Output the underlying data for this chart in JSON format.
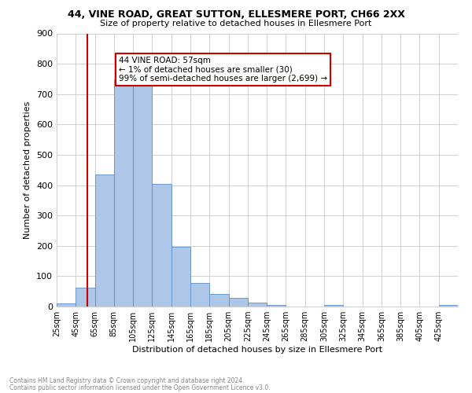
{
  "title1": "44, VINE ROAD, GREAT SUTTON, ELLESMERE PORT, CH66 2XX",
  "title2": "Size of property relative to detached houses in Ellesmere Port",
  "xlabel": "Distribution of detached houses by size in Ellesmere Port",
  "ylabel": "Number of detached properties",
  "bin_labels": [
    "25sqm",
    "45sqm",
    "65sqm",
    "85sqm",
    "105sqm",
    "125sqm",
    "145sqm",
    "165sqm",
    "185sqm",
    "205sqm",
    "225sqm",
    "245sqm",
    "265sqm",
    "285sqm",
    "305sqm",
    "325sqm",
    "345sqm",
    "365sqm",
    "385sqm",
    "405sqm",
    "425sqm"
  ],
  "bar_heights": [
    10,
    62,
    435,
    748,
    730,
    403,
    198,
    78,
    42,
    28,
    12,
    5,
    0,
    0,
    5,
    0,
    0,
    0,
    0,
    0,
    5
  ],
  "bar_color": "#aec6e8",
  "bar_edge_color": "#5b8fc9",
  "vline_x": 57,
  "vline_color": "#cc0000",
  "annotation_line1": "44 VINE ROAD: 57sqm",
  "annotation_line2": "← 1% of detached houses are smaller (30)",
  "annotation_line3": "99% of semi-detached houses are larger (2,699) →",
  "annotation_box_color": "#ffffff",
  "annotation_box_edge": "#cc0000",
  "ylim": [
    0,
    900
  ],
  "yticks": [
    0,
    100,
    200,
    300,
    400,
    500,
    600,
    700,
    800,
    900
  ],
  "footer1": "Contains HM Land Registry data © Crown copyright and database right 2024.",
  "footer2": "Contains public sector information licensed under the Open Government Licence v3.0.",
  "bg_color": "#ffffff",
  "grid_color": "#d0d0d0"
}
